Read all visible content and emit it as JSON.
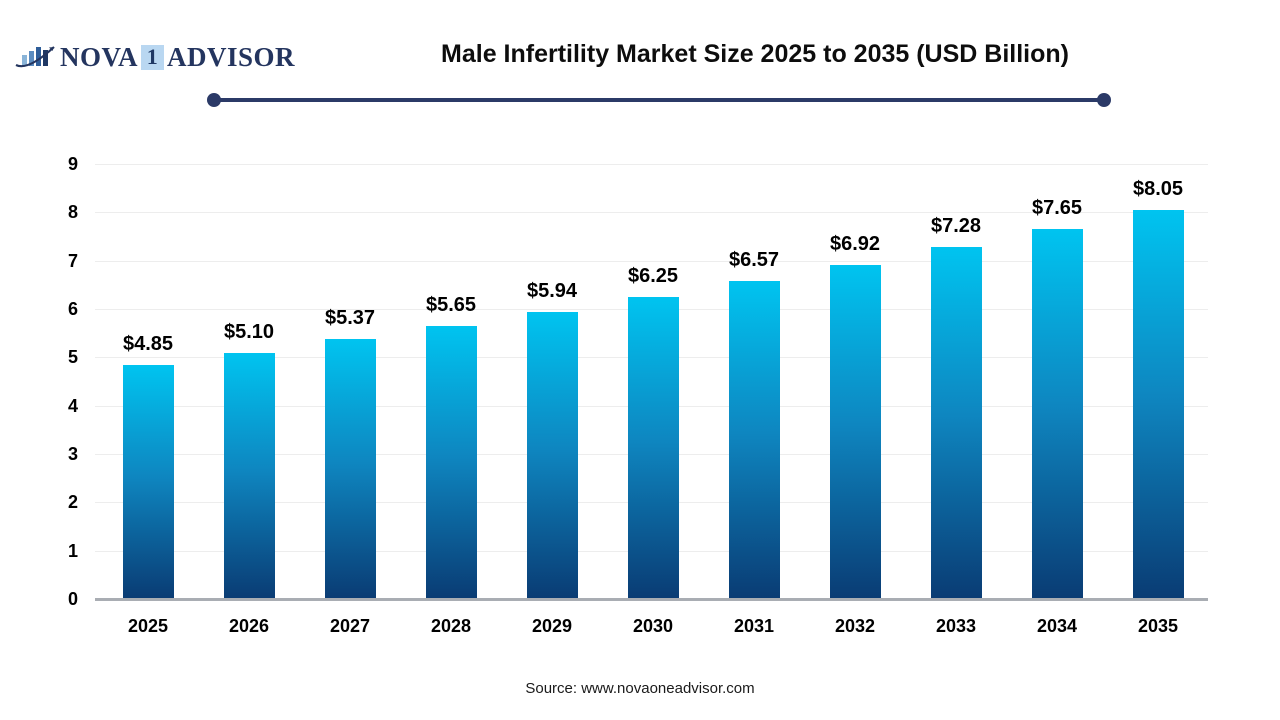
{
  "logo": {
    "nova": "NOVA",
    "one": "1",
    "advisor": "ADVISOR"
  },
  "title": "Male Infertility Market Size 2025 to 2035 (USD Billion)",
  "source": "Source: www.novaoneadvisor.com",
  "colors": {
    "accent_navy": "#2b3a67",
    "logo_navy": "#24355f",
    "logo_badge_bg": "#b9d7f1",
    "bar_gradient_top": "#00c4f0",
    "bar_gradient_bottom": "#0a3c74",
    "gridline": "#ededed",
    "baseline": "#a9adb3"
  },
  "chart_data": {
    "type": "bar",
    "title": "Male Infertility Market Size 2025 to 2035 (USD Billion)",
    "categories": [
      "2025",
      "2026",
      "2027",
      "2028",
      "2029",
      "2030",
      "2031",
      "2032",
      "2033",
      "2034",
      "2035"
    ],
    "values": [
      4.85,
      5.1,
      5.37,
      5.65,
      5.94,
      6.25,
      6.57,
      6.92,
      7.28,
      7.65,
      8.05
    ],
    "value_labels": [
      "$4.85",
      "$5.10",
      "$5.37",
      "$5.65",
      "$5.94",
      "$6.25",
      "$6.57",
      "$6.92",
      "$7.28",
      "$7.65",
      "$8.05"
    ],
    "xlabel": "",
    "ylabel": "",
    "ylim": [
      0,
      9
    ],
    "yticks": [
      0,
      1,
      2,
      3,
      4,
      5,
      6,
      7,
      8,
      9
    ],
    "grid": true,
    "legend": false
  }
}
